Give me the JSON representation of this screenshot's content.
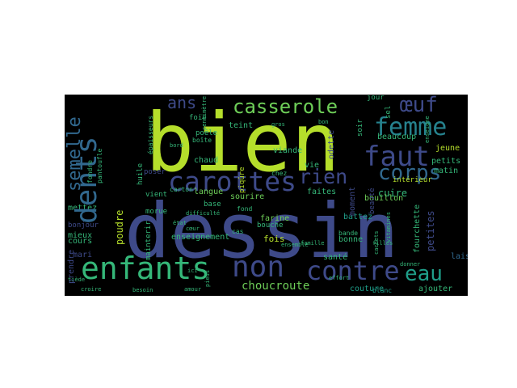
{
  "words": [
    {
      "text": "dessin",
      "color": "#3e4a89"
    },
    {
      "text": "bien",
      "color": "#b5de2b"
    },
    {
      "text": "enfants",
      "color": "#35b779"
    },
    {
      "text": "non",
      "color": "#3e4a89"
    },
    {
      "text": "contre",
      "color": "#3e4a89"
    },
    {
      "text": "eau",
      "color": "#1f9e89"
    },
    {
      "text": "femme",
      "color": "#26828e"
    },
    {
      "text": "faut",
      "color": "#3e4a89"
    },
    {
      "text": "carottes",
      "color": "#3e4a89"
    },
    {
      "text": "casserole",
      "color": "#6ece58"
    },
    {
      "text": "dents",
      "color": "#31688e"
    },
    {
      "text": "corps",
      "color": "#31688e"
    },
    {
      "text": "rien",
      "color": "#3e4a89"
    },
    {
      "text": "œuf",
      "color": "#3e4a89"
    },
    {
      "text": "ans",
      "color": "#3e4a89"
    },
    {
      "text": "semelle",
      "color": "#31688e"
    },
    {
      "text": "choucroute",
      "color": "#6ece58"
    },
    {
      "text": "enseignement",
      "color": "#35b779"
    },
    {
      "text": "poudre",
      "color": "#b5de2b"
    },
    {
      "text": "fois",
      "color": "#b5de2b"
    },
    {
      "text": "viande",
      "color": "#35b779"
    },
    {
      "text": "cuire",
      "color": "#35b779"
    },
    {
      "text": "couture",
      "color": "#1f9e89"
    },
    {
      "text": "ajouter",
      "color": "#35b779"
    },
    {
      "text": "bouillon",
      "color": "#6ece58"
    },
    {
      "text": "beaucoup",
      "color": "#35b779"
    },
    {
      "text": "langue",
      "color": "#6ece58"
    },
    {
      "text": "sourire",
      "color": "#6ece58"
    },
    {
      "text": "farine",
      "color": "#6ece58"
    },
    {
      "text": "santé",
      "color": "#35b779"
    },
    {
      "text": "bonne",
      "color": "#35b779"
    },
    {
      "text": "faites",
      "color": "#35b779"
    },
    {
      "text": "battez",
      "color": "#1f9e89"
    },
    {
      "text": "petites",
      "color": "#3e4a89"
    },
    {
      "text": "fourchette",
      "color": "#35b779"
    },
    {
      "text": "laissez",
      "color": "#31688e"
    },
    {
      "text": "mieux",
      "color": "#35b779"
    },
    {
      "text": "mettez",
      "color": "#35b779"
    },
    {
      "text": "cours",
      "color": "#35b779"
    },
    {
      "text": "mari",
      "color": "#3e4a89"
    },
    {
      "text": "prendre",
      "color": "#3e4a89"
    },
    {
      "text": "jeune",
      "color": "#b5de2b"
    },
    {
      "text": "petits",
      "color": "#35b779"
    },
    {
      "text": "matin",
      "color": "#35b779"
    },
    {
      "text": "chaud",
      "color": "#35b779"
    },
    {
      "text": "teint",
      "color": "#35b779"
    },
    {
      "text": "vie",
      "color": "#35b779"
    },
    {
      "text": "base",
      "color": "#35b779"
    },
    {
      "text": "bouche",
      "color": "#35b779"
    },
    {
      "text": "intérieur",
      "color": "#b5de2b"
    },
    {
      "text": "mainterir",
      "color": "#35b779"
    },
    {
      "text": "vient",
      "color": "#35b779"
    },
    {
      "text": "morue",
      "color": "#35b779"
    },
    {
      "text": "huile",
      "color": "#35b779"
    },
    {
      "text": "poêle",
      "color": "#35b779"
    },
    {
      "text": "bonjour",
      "color": "#3e4a89"
    },
    {
      "text": "blanc",
      "color": "#1f9e89"
    },
    {
      "text": "fond",
      "color": "#35b779"
    },
    {
      "text": "piqûre",
      "color": "#b5de2b"
    },
    {
      "text": "moment",
      "color": "#3e4a89"
    },
    {
      "text": "odette",
      "color": "#3e4a89"
    },
    {
      "text": "beauté",
      "color": "#3e4a89"
    },
    {
      "text": "jour",
      "color": "#35b779"
    },
    {
      "text": "soir",
      "color": "#35b779"
    },
    {
      "text": "poser",
      "color": "#3e4a89"
    },
    {
      "text": "bande",
      "color": "#35b779"
    },
    {
      "text": "effort",
      "color": "#35b779"
    },
    {
      "text": "cas",
      "color": "#35b779"
    },
    {
      "text": "carton",
      "color": "#35b779"
    },
    {
      "text": "chez",
      "color": "#35b779"
    },
    {
      "text": "boîte",
      "color": "#35b779"
    },
    {
      "text": "sel",
      "color": "#35b779"
    },
    {
      "text": "ensemble",
      "color": "#35b779"
    },
    {
      "text": "filles",
      "color": "#35b779"
    },
    {
      "text": "cachets",
      "color": "#35b779"
    },
    {
      "text": "vitamines",
      "color": "#35b779"
    },
    {
      "text": "épaisseurs",
      "color": "#35b779"
    },
    {
      "text": "pantoufle",
      "color": "#35b779"
    },
    {
      "text": "bon",
      "color": "#35b779"
    },
    {
      "text": "foie",
      "color": "#35b779"
    },
    {
      "text": "besoin",
      "color": "#35b779"
    },
    {
      "text": "fondre",
      "color": "#35b779"
    },
    {
      "text": "amour",
      "color": "#35b779"
    },
    {
      "text": "tiède",
      "color": "#35b779"
    },
    {
      "text": "croire",
      "color": "#35b779"
    },
    {
      "text": "centimètre",
      "color": "#35b779"
    },
    {
      "text": "famille",
      "color": "#35b779"
    },
    {
      "text": "pieds",
      "color": "#35b779"
    },
    {
      "text": "gros",
      "color": "#35b779"
    },
    {
      "text": "donner",
      "color": "#35b779"
    },
    {
      "text": "ici",
      "color": "#35b779"
    },
    {
      "text": "état",
      "color": "#35b779"
    },
    {
      "text": "difficulté",
      "color": "#35b779"
    },
    {
      "text": "bord",
      "color": "#35b779"
    },
    {
      "text": "cœur",
      "color": "#35b779"
    },
    {
      "text": "enseigne",
      "color": "#35b779"
    }
  ]
}
